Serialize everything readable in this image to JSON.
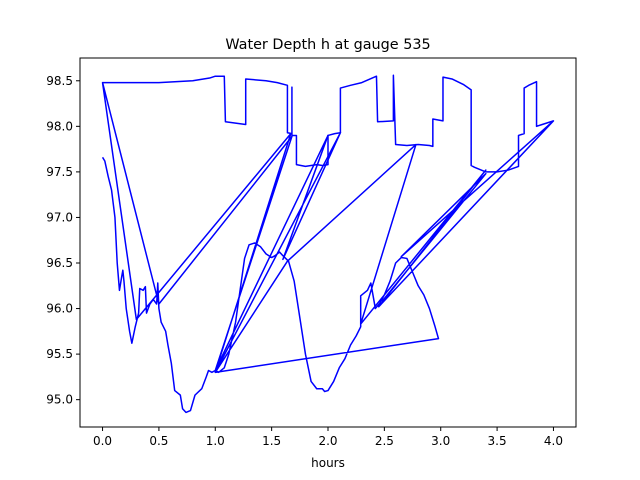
{
  "chart_data": {
    "type": "line",
    "title": "Water Depth h at gauge 535",
    "xlabel": "hours",
    "ylabel": "",
    "xlim": [
      -0.2,
      4.2
    ],
    "ylim": [
      94.7,
      98.75
    ],
    "x_ticks": [
      0.0,
      0.5,
      1.0,
      1.5,
      2.0,
      2.5,
      3.0,
      3.5,
      4.0
    ],
    "x_tick_labels": [
      "0.0",
      "0.5",
      "1.0",
      "1.5",
      "2.0",
      "2.5",
      "3.0",
      "3.5",
      "4.0"
    ],
    "y_ticks": [
      95.0,
      95.5,
      96.0,
      96.5,
      97.0,
      97.5,
      98.0,
      98.5
    ],
    "y_tick_labels": [
      "95.0",
      "95.5",
      "96.0",
      "96.5",
      "97.0",
      "97.5",
      "98.0",
      "98.5"
    ],
    "grid": false,
    "legend": "none",
    "series": [
      {
        "color": "#0000ff",
        "points": [
          [
            0.0,
            97.66
          ],
          [
            0.02,
            97.62
          ],
          [
            0.05,
            97.45
          ],
          [
            0.08,
            97.3
          ],
          [
            0.11,
            97.0
          ],
          [
            0.13,
            96.5
          ],
          [
            0.15,
            96.2
          ],
          [
            0.17,
            96.35
          ],
          [
            0.18,
            96.42
          ],
          [
            0.19,
            96.3
          ],
          [
            0.21,
            96.0
          ],
          [
            0.24,
            95.75
          ],
          [
            0.26,
            95.62
          ],
          [
            0.29,
            95.8
          ],
          [
            0.32,
            95.95
          ],
          [
            0.33,
            96.22
          ],
          [
            0.36,
            96.2
          ],
          [
            0.38,
            96.24
          ],
          [
            0.39,
            95.95
          ],
          [
            0.42,
            96.05
          ],
          [
            0.45,
            96.1
          ],
          [
            0.48,
            96.05
          ],
          [
            0.49,
            96.28
          ],
          [
            0.5,
            96.0
          ],
          [
            0.52,
            95.85
          ],
          [
            0.56,
            95.75
          ],
          [
            0.58,
            95.6
          ],
          [
            0.61,
            95.4
          ],
          [
            0.64,
            95.1
          ],
          [
            0.69,
            95.05
          ],
          [
            0.71,
            94.9
          ],
          [
            0.74,
            94.86
          ],
          [
            0.78,
            94.88
          ],
          [
            0.82,
            95.05
          ],
          [
            0.88,
            95.12
          ],
          [
            0.92,
            95.25
          ],
          [
            0.94,
            95.32
          ],
          [
            0.97,
            95.3
          ],
          [
            1.0,
            95.32
          ],
          [
            1.03,
            95.3
          ],
          [
            1.08,
            95.35
          ],
          [
            1.12,
            95.5
          ],
          [
            1.18,
            95.85
          ],
          [
            1.22,
            96.2
          ],
          [
            1.26,
            96.55
          ],
          [
            1.3,
            96.7
          ],
          [
            1.35,
            96.72
          ],
          [
            1.4,
            96.68
          ],
          [
            1.45,
            96.6
          ],
          [
            1.5,
            96.56
          ],
          [
            1.53,
            96.58
          ],
          [
            1.57,
            96.62
          ],
          [
            1.6,
            96.58
          ],
          [
            1.65,
            96.52
          ],
          [
            1.7,
            96.3
          ],
          [
            1.75,
            95.9
          ],
          [
            1.8,
            95.5
          ],
          [
            1.85,
            95.2
          ],
          [
            1.9,
            95.12
          ],
          [
            1.95,
            95.12
          ],
          [
            1.97,
            95.09
          ],
          [
            2.0,
            95.1
          ],
          [
            2.05,
            95.2
          ],
          [
            2.1,
            95.35
          ],
          [
            2.15,
            95.45
          ],
          [
            2.2,
            95.6
          ],
          [
            2.25,
            95.7
          ],
          [
            2.29,
            95.8
          ],
          [
            2.29,
            96.14
          ],
          [
            2.35,
            96.2
          ],
          [
            2.38,
            96.28
          ],
          [
            2.42,
            96.0
          ],
          [
            2.46,
            96.06
          ],
          [
            2.5,
            96.15
          ],
          [
            2.55,
            96.3
          ],
          [
            2.6,
            96.5
          ],
          [
            2.65,
            96.56
          ],
          [
            2.7,
            96.55
          ],
          [
            2.75,
            96.4
          ],
          [
            2.8,
            96.25
          ],
          [
            2.85,
            96.15
          ],
          [
            2.9,
            96.0
          ],
          [
            2.95,
            95.8
          ],
          [
            2.98,
            95.67
          ],
          [
            1.0,
            95.3
          ],
          [
            1.67,
            97.92
          ],
          [
            0.3,
            95.88
          ],
          [
            0.0,
            98.48
          ],
          [
            0.5,
            96.05
          ],
          [
            1.68,
            97.89
          ],
          [
            1.0,
            95.32
          ],
          [
            2.0,
            97.9
          ],
          [
            1.6,
            96.54
          ],
          [
            2.11,
            97.93
          ],
          [
            1.0,
            95.3
          ],
          [
            1.0,
            95.3
          ],
          [
            1.64,
            96.52
          ],
          [
            2.78,
            97.8
          ],
          [
            2.29,
            95.83
          ],
          [
            3.4,
            97.52
          ],
          [
            2.45,
            96.02
          ],
          [
            4.0,
            98.06
          ],
          [
            2.65,
            96.57
          ],
          [
            3.4,
            97.48
          ],
          [
            2.48,
            96.08
          ]
        ]
      },
      {
        "color": "#0000ff",
        "points": [
          [
            0.0,
            98.48
          ],
          [
            0.0,
            98.48
          ],
          [
            0.5,
            98.48
          ],
          [
            0.8,
            98.5
          ],
          [
            0.95,
            98.53
          ],
          [
            1.0,
            98.55
          ],
          [
            1.08,
            98.55
          ],
          [
            1.09,
            98.05
          ],
          [
            1.27,
            98.02
          ],
          [
            1.27,
            98.52
          ],
          [
            1.45,
            98.5
          ],
          [
            1.55,
            98.48
          ],
          [
            1.64,
            98.45
          ],
          [
            1.64,
            97.93
          ],
          [
            1.68,
            97.92
          ],
          [
            1.68,
            98.43
          ],
          [
            1.68,
            97.9
          ],
          [
            1.72,
            97.9
          ],
          [
            1.72,
            97.58
          ],
          [
            1.8,
            97.56
          ],
          [
            1.85,
            97.57
          ],
          [
            1.9,
            97.58
          ],
          [
            1.95,
            97.57
          ],
          [
            2.0,
            97.58
          ],
          [
            2.0,
            97.9
          ],
          [
            2.06,
            97.92
          ],
          [
            2.11,
            97.93
          ],
          [
            2.11,
            98.42
          ],
          [
            2.2,
            98.45
          ],
          [
            2.3,
            98.48
          ],
          [
            2.43,
            98.55
          ],
          [
            2.44,
            98.05
          ],
          [
            2.58,
            98.06
          ],
          [
            2.58,
            98.56
          ],
          [
            2.6,
            97.8
          ],
          [
            2.7,
            97.79
          ],
          [
            2.8,
            97.8
          ],
          [
            2.9,
            97.79
          ],
          [
            2.93,
            97.78
          ],
          [
            2.93,
            98.08
          ],
          [
            3.02,
            98.06
          ],
          [
            3.02,
            98.54
          ],
          [
            3.1,
            98.52
          ],
          [
            3.2,
            98.46
          ],
          [
            3.27,
            98.4
          ],
          [
            3.27,
            97.57
          ],
          [
            3.3,
            97.55
          ],
          [
            3.4,
            97.5
          ],
          [
            3.5,
            97.5
          ],
          [
            3.6,
            97.52
          ],
          [
            3.69,
            97.56
          ],
          [
            3.69,
            97.9
          ],
          [
            3.74,
            97.92
          ],
          [
            3.74,
            98.42
          ],
          [
            3.78,
            98.45
          ],
          [
            3.85,
            98.49
          ],
          [
            3.85,
            98.0
          ],
          [
            3.9,
            98.02
          ],
          [
            4.0,
            98.06
          ]
        ]
      }
    ]
  }
}
